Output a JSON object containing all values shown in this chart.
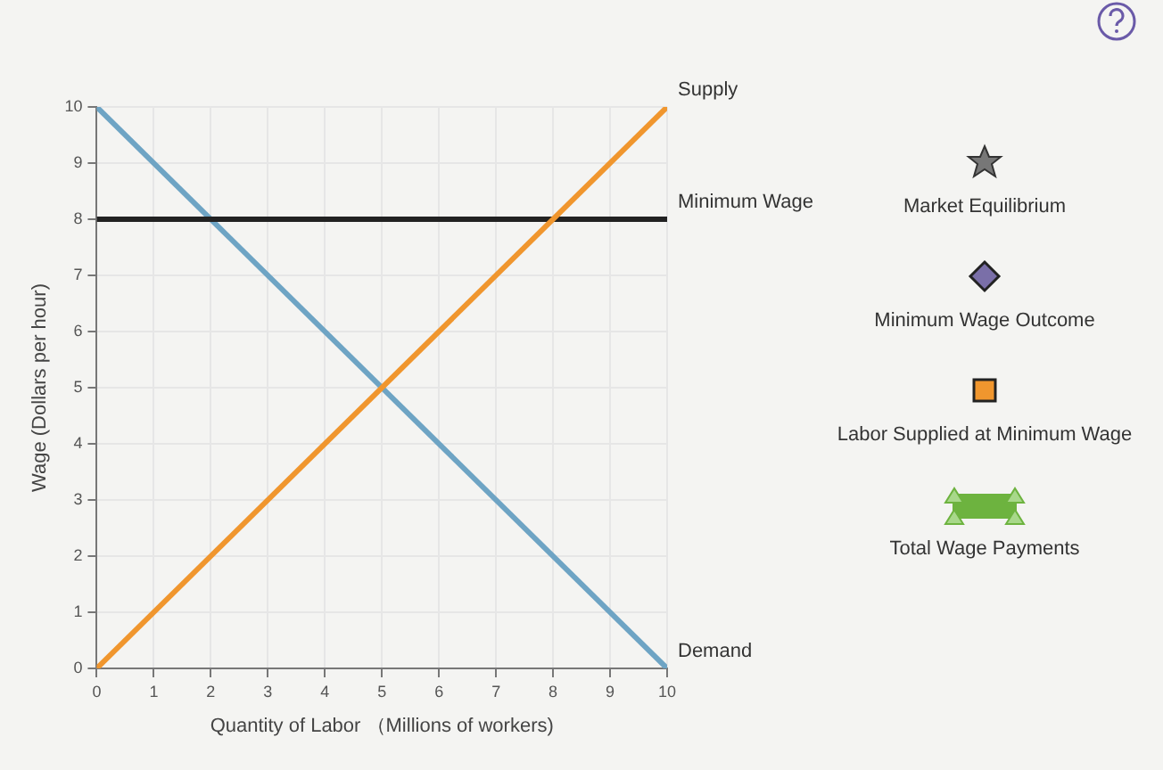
{
  "chart_data": {
    "type": "line",
    "xlabel": "Quantity of Labor （Millions of workers)",
    "ylabel": "Wage (Dollars per hour)",
    "xlim": [
      0,
      10
    ],
    "xticks": [
      0,
      1,
      2,
      3,
      4,
      5,
      6,
      7,
      8,
      9,
      10
    ],
    "ylim": [
      0,
      10
    ],
    "yticks": [
      0,
      1,
      2,
      3,
      4,
      5,
      6,
      7,
      8,
      9,
      10
    ],
    "x": [
      0,
      10
    ],
    "series": [
      {
        "name": "Supply",
        "color": "#f0962e",
        "values": [
          0,
          10
        ]
      },
      {
        "name": "Minimum Wage",
        "color": "#222222",
        "values": [
          8,
          8
        ]
      },
      {
        "name": "Demand",
        "color": "#6ea4c4",
        "values": [
          10,
          0
        ]
      }
    ],
    "marker": "none",
    "grid": true,
    "legend": false,
    "annotations": [
      "Market Equilibrium",
      "Minimum Wage Outcome",
      "Labor Supplied at Minimum Wage",
      "Total Wage Payments"
    ]
  }
}
